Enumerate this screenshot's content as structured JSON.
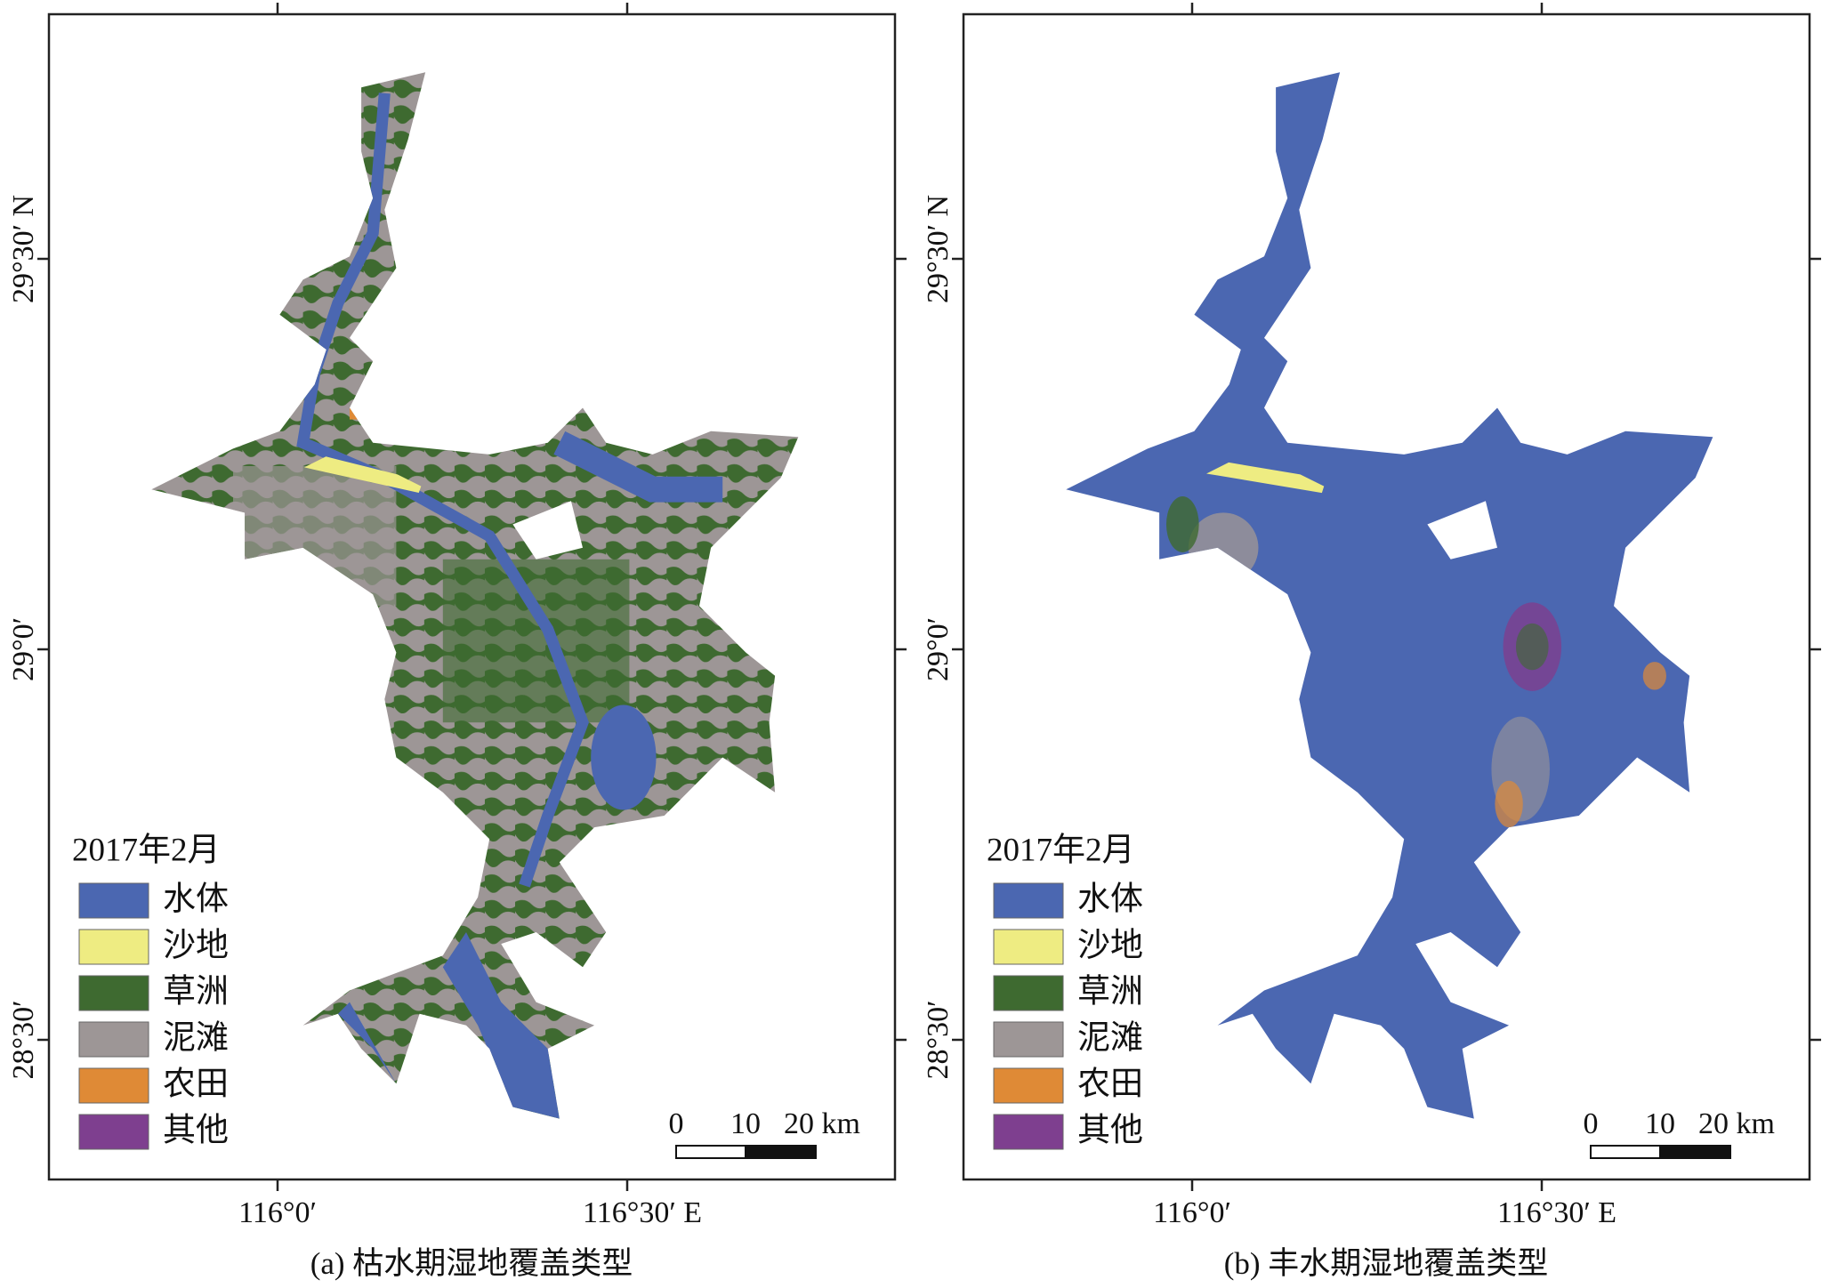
{
  "panels": [
    {
      "caption": "(a) 枯水期湿地覆盖类型",
      "lon_ticks": [
        "116°0′",
        "116°30′  E"
      ],
      "lat_ticks": [
        "29°30′ N",
        "29°0′",
        "28°30′"
      ],
      "legend": {
        "title": "2017年2月",
        "items": [
          {
            "label": "水体",
            "color": "#4b67b1"
          },
          {
            "label": "沙地",
            "color": "#eeec82"
          },
          {
            "label": "草洲",
            "color": "#3e6a30"
          },
          {
            "label": "泥滩",
            "color": "#9d9696"
          },
          {
            "label": "农田",
            "color": "#df8a36"
          },
          {
            "label": "其他",
            "color": "#7e3f8f"
          }
        ]
      },
      "scale_labels": [
        "0",
        "10",
        "20 km"
      ]
    },
    {
      "caption": "(b) 丰水期湿地覆盖类型",
      "lon_ticks": [
        "116°0′",
        "116°30′  E"
      ],
      "lat_ticks": [
        "29°30′ N",
        "29°0′",
        "28°30′"
      ],
      "legend": {
        "title": "2017年2月",
        "items": [
          {
            "label": "水体",
            "color": "#4b67b1"
          },
          {
            "label": "沙地",
            "color": "#eeec82"
          },
          {
            "label": "草洲",
            "color": "#3e6a30"
          },
          {
            "label": "泥滩",
            "color": "#9d9696"
          },
          {
            "label": "农田",
            "color": "#df8a36"
          },
          {
            "label": "其他",
            "color": "#7e3f8f"
          }
        ]
      },
      "scale_labels": [
        "0",
        "10",
        "20 km"
      ]
    }
  ]
}
